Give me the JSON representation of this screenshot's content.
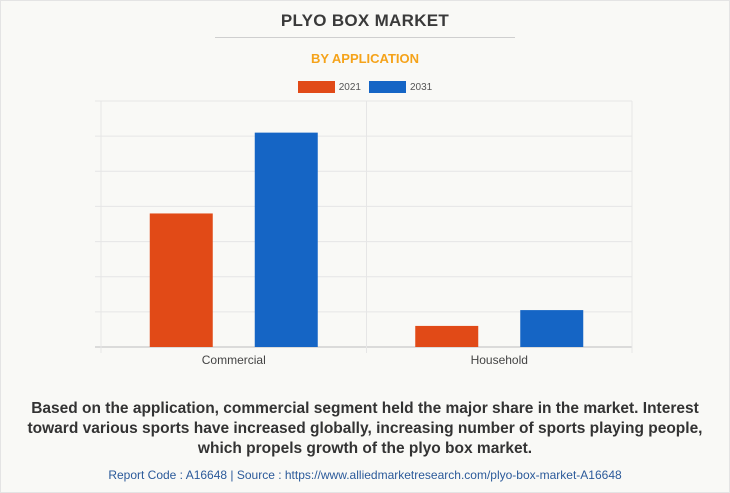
{
  "title": "PLYO BOX MARKET",
  "subtitle": "BY APPLICATION",
  "colors": {
    "subtitle": "#f5a31a",
    "series_2021": "#e14a17",
    "series_2031": "#1565c5",
    "grid": "#e6e6e6",
    "axis": "#bdbdbd"
  },
  "chart_data": {
    "type": "bar",
    "categories": [
      "Commercial",
      "Household"
    ],
    "series": [
      {
        "name": "2021",
        "values": [
          38,
          6
        ]
      },
      {
        "name": "2031",
        "values": [
          61,
          10.5
        ]
      }
    ],
    "ylim": [
      0,
      70
    ],
    "grid": true,
    "legend": "top-center",
    "xlabel": "",
    "ylabel": ""
  },
  "description": "Based on the application, commercial segment held the major share in the market. Interest toward various sports have increased globally, increasing number of sports playing people, which propels growth of the plyo box market.",
  "footer": "Report Code : A16648  |  Source : https://www.alliedmarketresearch.com/plyo-box-market-A16648"
}
